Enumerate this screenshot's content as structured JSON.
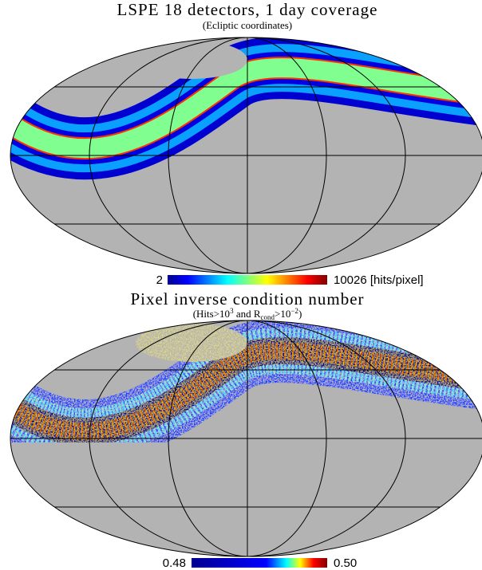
{
  "panels": [
    {
      "title": "LSPE 18 detectors, 1 day coverage",
      "subtitle": [
        "(Ecliptic coordinates)"
      ],
      "colorbar": {
        "min_label": "2",
        "max_label": "10026",
        "unit": "[hits/pixel]"
      }
    },
    {
      "title": "Pixel inverse condition number",
      "subtitle": [
        "(Hits>10",
        "3",
        " and R",
        "cond",
        ">10",
        "−2",
        ")"
      ],
      "colorbar": {
        "min_label": "0.48",
        "max_label": "0.50"
      }
    }
  ]
}
